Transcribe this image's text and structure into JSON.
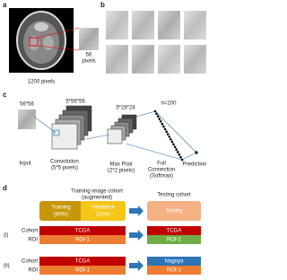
{
  "panel_a": {
    "label": "a",
    "zoom_label": [
      "56",
      "pixels"
    ],
    "image_label": "1200 pixels"
  },
  "panel_b": {
    "label": "b"
  },
  "panel_c": {
    "label": "c",
    "input_size": "56*56",
    "conv_size": "5*56*56",
    "pool_size": "5*28*28",
    "n": "n=200",
    "stages": [
      [
        "Input"
      ],
      [
        "Convolution",
        "(5*5 pixels)"
      ],
      [
        "Max Pool",
        "(2*2 pixels)"
      ],
      [
        "Full",
        "Connection",
        "(Softmax)"
      ],
      [
        "Prediction"
      ]
    ]
  },
  "panel_d": {
    "label": "d",
    "training_header": [
      "Training image cohort",
      "(augmented)"
    ],
    "testing_header": "Testing cohort",
    "training": [
      "Training",
      "(90%)"
    ],
    "validation": [
      "Validation",
      "(10%)"
    ],
    "testing": "Testing",
    "rows": [
      {
        "id": "(i)",
        "row_labels": [
          "Cohort",
          "ROI"
        ],
        "train": [
          "TCGA",
          "ROI-1"
        ],
        "test": [
          "TCGA",
          "ROI-2"
        ]
      },
      {
        "id": "(ii)",
        "row_labels": [
          "Cohort",
          "ROI"
        ],
        "train": [
          "TCGA",
          "ROI-1"
        ],
        "test": [
          "Nagoya",
          "ROI-1"
        ]
      }
    ]
  }
}
